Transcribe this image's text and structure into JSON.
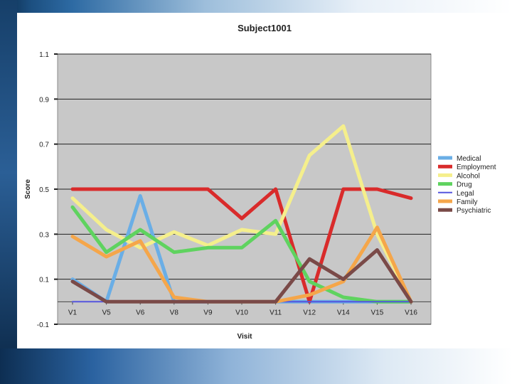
{
  "chart_data": {
    "type": "line",
    "title": "Subject1001",
    "xlabel": "Visit",
    "ylabel": "Score",
    "categories": [
      "V1",
      "V5",
      "V6",
      "V8",
      "V9",
      "V10",
      "V11",
      "V12",
      "V14",
      "V15",
      "V16"
    ],
    "ylim": [
      -0.1,
      1.1
    ],
    "yticks": [
      "1.1",
      "0.9",
      "0.7",
      "0.5",
      "0.3",
      "0.1",
      "-0.1"
    ],
    "grid": true,
    "legend_position": "right",
    "series": [
      {
        "name": "Medical",
        "color": "#6aaee6",
        "values": [
          0.1,
          0.0,
          0.47,
          0.0,
          0.0,
          0.0,
          0.0,
          0.0,
          0.0,
          0.0,
          0.0
        ]
      },
      {
        "name": "Employment",
        "color": "#d92b2b",
        "values": [
          0.5,
          0.5,
          0.5,
          0.5,
          0.5,
          0.37,
          0.5,
          0.0,
          0.5,
          0.5,
          0.46
        ]
      },
      {
        "name": "Alcohol",
        "color": "#f5ef8c",
        "values": [
          0.46,
          0.32,
          0.24,
          0.31,
          0.25,
          0.32,
          0.3,
          0.65,
          0.78,
          0.3,
          0.0
        ]
      },
      {
        "name": "Drug",
        "color": "#5fd35f",
        "values": [
          0.42,
          0.22,
          0.32,
          0.22,
          0.24,
          0.24,
          0.36,
          0.09,
          0.02,
          0.0,
          0.0
        ]
      },
      {
        "name": "Legal",
        "color": "#5555dd",
        "values": [
          0.0,
          0.0,
          0.0,
          0.0,
          0.0,
          0.0,
          0.0,
          0.0,
          0.0,
          0.0,
          0.0
        ]
      },
      {
        "name": "Family",
        "color": "#f5a64a",
        "values": [
          0.29,
          0.2,
          0.27,
          0.02,
          0.0,
          0.0,
          0.0,
          0.03,
          0.09,
          0.33,
          0.0
        ]
      },
      {
        "name": "Psychiatric",
        "color": "#7a4a48",
        "values": [
          0.09,
          0.0,
          0.0,
          0.0,
          0.0,
          0.0,
          0.0,
          0.19,
          0.1,
          0.23,
          0.0
        ]
      }
    ]
  }
}
